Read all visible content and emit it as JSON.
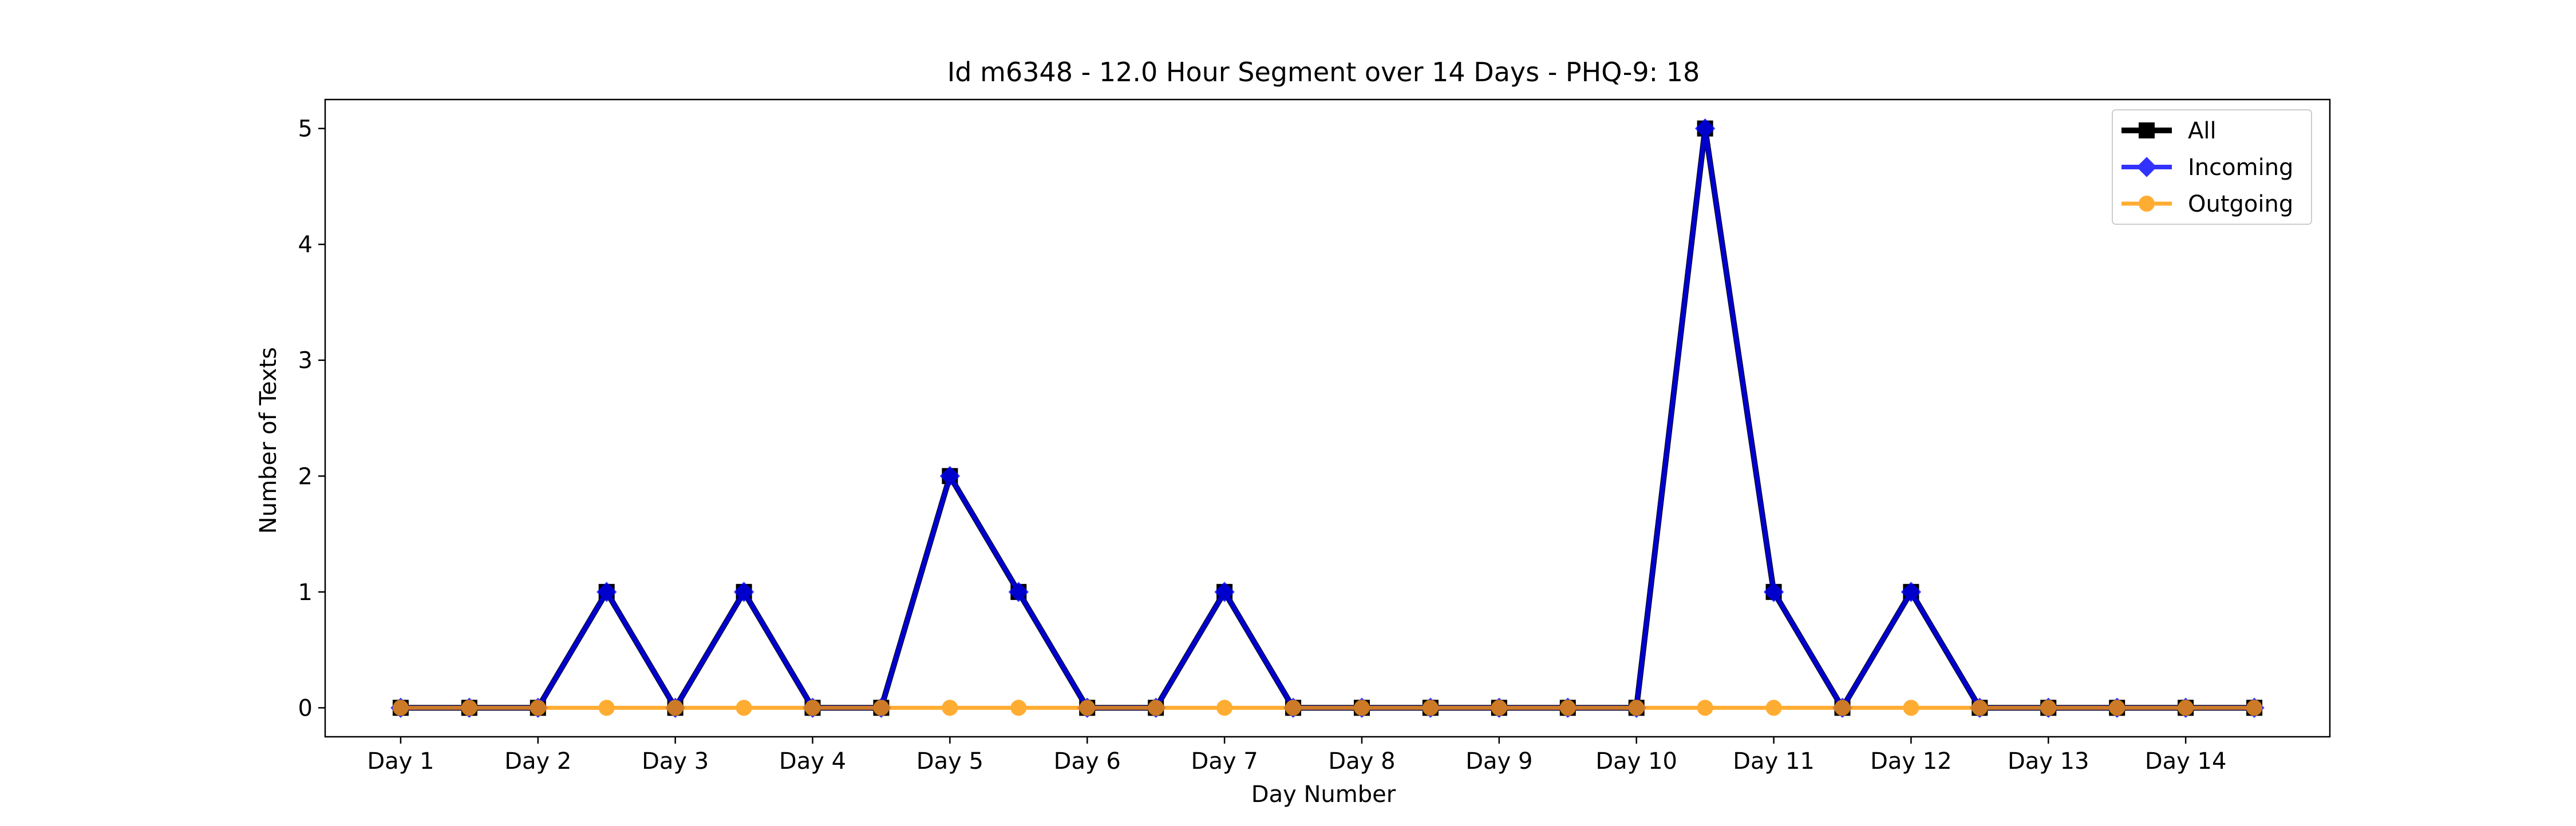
{
  "chart_data": {
    "type": "line",
    "title": "Id m6348 - 12.0 Hour Segment over 14 Days - PHQ-9: 18",
    "xlabel": "Day Number",
    "ylabel": "Number of Texts",
    "categories": [
      "Day 1",
      "Day 2",
      "Day 3",
      "Day 4",
      "Day 5",
      "Day 6",
      "Day 7",
      "Day 8",
      "Day 9",
      "Day 10",
      "Day 11",
      "Day 12",
      "Day 13",
      "Day 14"
    ],
    "x": [
      1,
      1.5,
      2,
      2.5,
      3,
      3.5,
      4,
      4.5,
      5,
      5.5,
      6,
      6.5,
      7,
      7.5,
      8,
      8.5,
      9,
      9.5,
      10,
      10.5,
      11,
      11.5,
      12,
      12.5,
      13,
      13.5,
      14,
      14.5
    ],
    "yticks": [
      0,
      1,
      2,
      3,
      4,
      5
    ],
    "ylim": [
      -0.25,
      5.25
    ],
    "xlim": [
      0.45,
      15.05
    ],
    "grid": false,
    "legend_position": "top-right",
    "series": [
      {
        "name": "All",
        "color": "#000000",
        "marker": "square",
        "values": [
          0,
          0,
          0,
          1,
          0,
          1,
          0,
          0,
          2,
          1,
          0,
          0,
          1,
          0,
          0,
          0,
          0,
          0,
          0,
          5,
          1,
          0,
          1,
          0,
          0,
          0,
          0,
          0
        ]
      },
      {
        "name": "Incoming",
        "color": "#0000ff",
        "marker": "diamond",
        "values": [
          0,
          0,
          0,
          1,
          0,
          1,
          0,
          0,
          2,
          1,
          0,
          0,
          1,
          0,
          0,
          0,
          0,
          0,
          0,
          5,
          1,
          0,
          1,
          0,
          0,
          0,
          0,
          0
        ]
      },
      {
        "name": "Outgoing",
        "color": "#ff9900",
        "marker": "circle",
        "values": [
          0,
          0,
          0,
          0,
          0,
          0,
          0,
          0,
          0,
          0,
          0,
          0,
          0,
          0,
          0,
          0,
          0,
          0,
          0,
          0,
          0,
          0,
          0,
          0,
          0,
          0,
          0,
          0
        ]
      }
    ]
  }
}
